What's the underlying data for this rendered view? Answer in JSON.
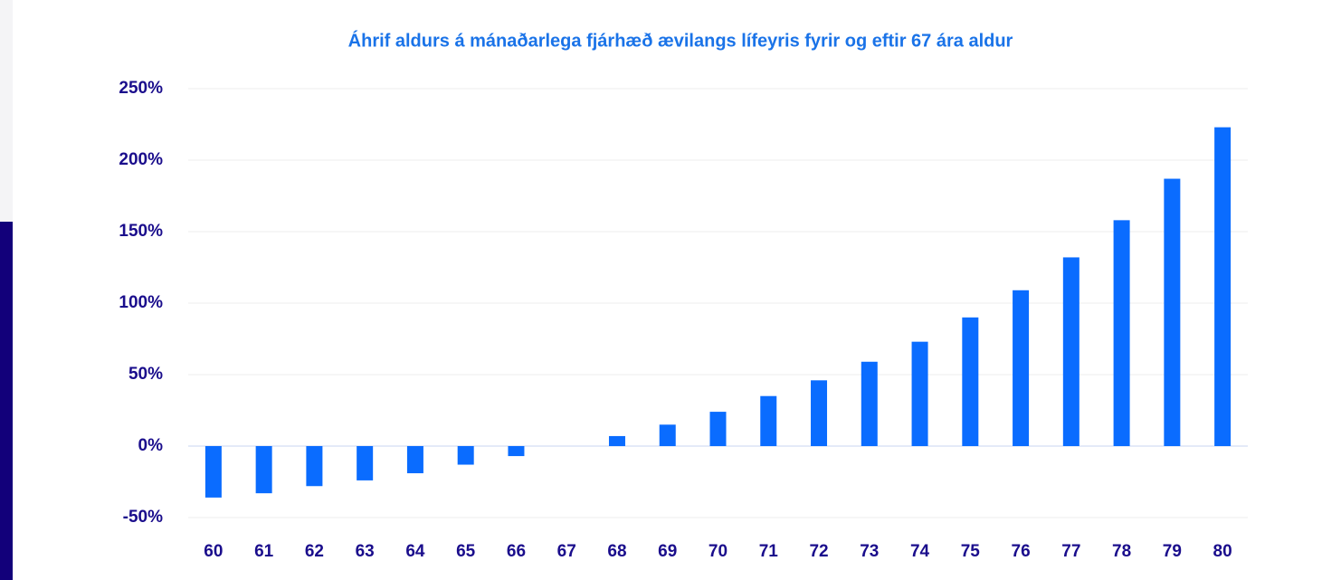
{
  "chart_data": {
    "type": "bar",
    "title": "Áhrif aldurs á mánaðarlega fjárhæð ævilangs lífeyris fyrir og eftir 67 ára aldur",
    "categories": [
      "60",
      "61",
      "62",
      "63",
      "64",
      "65",
      "66",
      "67",
      "68",
      "69",
      "70",
      "71",
      "72",
      "73",
      "74",
      "75",
      "76",
      "77",
      "78",
      "79",
      "80"
    ],
    "values": [
      -36,
      -33,
      -28,
      -24,
      -19,
      -13,
      -7,
      0,
      7,
      15,
      24,
      35,
      46,
      59,
      73,
      90,
      109,
      132,
      158,
      187,
      223
    ],
    "color": "#0a6cff",
    "ylim": [
      -50,
      250
    ],
    "yticks": [
      {
        "value": -50,
        "label": "-50%"
      },
      {
        "value": 0,
        "label": "0%"
      },
      {
        "value": 50,
        "label": "50%"
      },
      {
        "value": 100,
        "label": "100%"
      },
      {
        "value": 150,
        "label": "150%"
      },
      {
        "value": 200,
        "label": "200%"
      },
      {
        "value": 250,
        "label": "250%"
      }
    ],
    "grid": true
  }
}
